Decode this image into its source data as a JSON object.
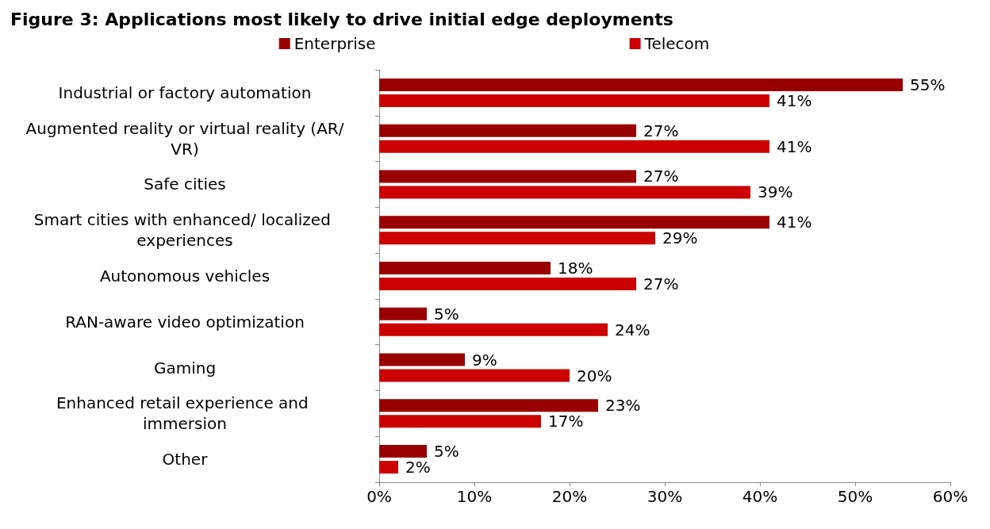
{
  "chart_data": {
    "type": "bar",
    "orientation": "horizontal",
    "title": "Figure 3: Applications most likely to drive initial edge deployments",
    "categories": [
      "Industrial or factory automation",
      "Augmented reality or virtual reality (AR/VR)",
      "Safe cities",
      "Smart cities with enhanced/ localized experiences",
      "Autonomous vehicles",
      "RAN-aware video optimization",
      "Gaming",
      "Enhanced retail experience and immersion",
      "Other"
    ],
    "series": [
      {
        "name": "Enterprise",
        "color": "#990000",
        "values": [
          55,
          27,
          27,
          41,
          18,
          5,
          9,
          23,
          5
        ],
        "value_labels": [
          "55%",
          "27%",
          "27%",
          "41%",
          "18%",
          "5%",
          "9%",
          "23%",
          "5%"
        ]
      },
      {
        "name": "Telecom",
        "color": "#cc0000",
        "values": [
          41,
          41,
          39,
          29,
          27,
          24,
          20,
          17,
          2
        ],
        "value_labels": [
          "41%",
          "41%",
          "39%",
          "29%",
          "27%",
          "24%",
          "20%",
          "17%",
          "2%"
        ]
      }
    ],
    "xlim": [
      0,
      60
    ],
    "xticks": [
      {
        "value": 0,
        "label": "0%"
      },
      {
        "value": 10,
        "label": "10%"
      },
      {
        "value": 20,
        "label": "20%"
      },
      {
        "value": 30,
        "label": "30%"
      },
      {
        "value": 40,
        "label": "40%"
      },
      {
        "value": 50,
        "label": "50%"
      },
      {
        "value": 60,
        "label": "60%"
      }
    ],
    "grid": false,
    "legend": "top"
  }
}
